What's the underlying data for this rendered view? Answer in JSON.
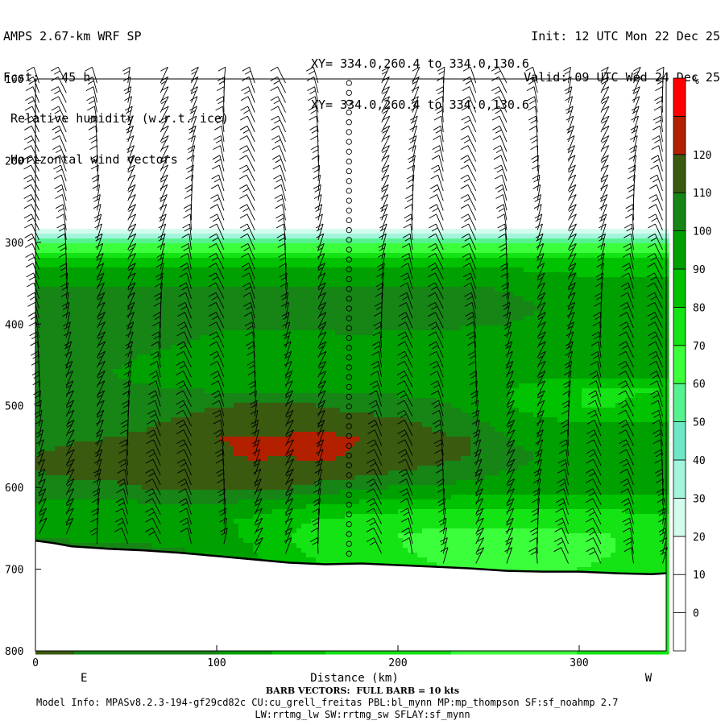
{
  "header": {
    "left_lines": [
      "AMPS 2.67-km WRF SP",
      "Fcst:   45 h",
      " Relative humidity (w.r.t. ice)",
      " Horizontal wind vectors"
    ],
    "right_lines": [
      "Init: 12 UTC Mon 22 Dec 25",
      "Valid: 09 UTC Wed 24 Dec 25"
    ],
    "xy_lines": [
      "XY= 334.0,260.4 to 334.0,130.6",
      "XY= 334.0,260.4 to 334.0,130.6"
    ]
  },
  "footer": {
    "barb_note": "BARB VECTORS:  FULL BARB = 10 kts",
    "model_info": "Model Info: MPASv8.2.3-194-gf29cd82c CU:cu_grell_freitas PBL:bl_mynn MP:mp_thompson SF:sf_noahmp 2.7",
    "model_info2": "LW:rrtmg_lw SW:rrtmg_sw SFLAY:sf_mynn"
  },
  "colors": {
    "bins": [
      "#ffffff",
      "#ffffff",
      "#ffffff",
      "#d4fcec",
      "#a2f5dc",
      "#6ee8c6",
      "#56f290",
      "#3cff3c",
      "#14e314",
      "#00c200",
      "#00a000",
      "#168516",
      "#3a5a10",
      "#b22000",
      "#ff0000"
    ]
  },
  "chart_data": {
    "type": "heatmap",
    "title": "Relative humidity (w.r.t. ice)",
    "subtitle": "Horizontal wind vectors",
    "xlabel": "Distance (km)",
    "ylabel": "",
    "xlim": [
      0,
      348
    ],
    "ylim": [
      800,
      100
    ],
    "x_ticks": [
      0,
      100,
      200,
      300
    ],
    "y_ticks": [
      100,
      200,
      300,
      400,
      500,
      600,
      700,
      800
    ],
    "x_end_labels": {
      "left": "E",
      "right": "W"
    },
    "colorbar": {
      "unit": "%",
      "labels": [
        120,
        110,
        100,
        90,
        80,
        70,
        60,
        50,
        40,
        30,
        20,
        10,
        0
      ],
      "bins": [
        [
          -10,
          0
        ],
        [
          0,
          10
        ],
        [
          10,
          20
        ],
        [
          20,
          30
        ],
        [
          30,
          40
        ],
        [
          40,
          50
        ],
        [
          50,
          60
        ],
        [
          60,
          70
        ],
        [
          70,
          80
        ],
        [
          80,
          90
        ],
        [
          90,
          100
        ],
        [
          100,
          110
        ],
        [
          110,
          120
        ],
        [
          120,
          130
        ]
      ]
    },
    "grid": false,
    "rh_field": {
      "x": [
        0,
        20,
        40,
        60,
        80,
        100,
        120,
        140,
        160,
        180,
        200,
        220,
        240,
        260,
        280,
        300,
        320,
        348
      ],
      "pressure": [
        100,
        200,
        280,
        290,
        300,
        320,
        340,
        360,
        380,
        400,
        420,
        440,
        460,
        480,
        500,
        520,
        540,
        560,
        580,
        600,
        620,
        640,
        660,
        680,
        700
      ],
      "values": [
        [
          0,
          0,
          0,
          0,
          0,
          0,
          0,
          0,
          0,
          0,
          0,
          0,
          0,
          0,
          0,
          0,
          0,
          0
        ],
        [
          0,
          0,
          0,
          0,
          0,
          0,
          0,
          0,
          0,
          0,
          0,
          0,
          0,
          0,
          0,
          0,
          0,
          0
        ],
        [
          15,
          15,
          15,
          15,
          15,
          15,
          15,
          15,
          15,
          15,
          15,
          15,
          15,
          15,
          15,
          15,
          15,
          15
        ],
        [
          32,
          32,
          32,
          32,
          32,
          32,
          32,
          32,
          32,
          32,
          32,
          32,
          32,
          32,
          32,
          32,
          32,
          32
        ],
        [
          55,
          55,
          55,
          55,
          55,
          55,
          55,
          55,
          55,
          55,
          55,
          55,
          55,
          55,
          55,
          55,
          55,
          55
        ],
        [
          82,
          82,
          82,
          82,
          82,
          82,
          82,
          82,
          82,
          82,
          82,
          82,
          82,
          82,
          82,
          82,
          82,
          82
        ],
        [
          95,
          95,
          95,
          95,
          95,
          95,
          95,
          95,
          95,
          95,
          95,
          95,
          95,
          95,
          92,
          90,
          88,
          88
        ],
        [
          102,
          102,
          102,
          102,
          103,
          103,
          103,
          103,
          103,
          103,
          103,
          103,
          102,
          100,
          98,
          97,
          96,
          96
        ],
        [
          103,
          104,
          104,
          105,
          105,
          104,
          104,
          103,
          104,
          103,
          102,
          103,
          103,
          102,
          100,
          99,
          99,
          98
        ],
        [
          104,
          104,
          104,
          105,
          104,
          103,
          102,
          101,
          102,
          102,
          101,
          102,
          101,
          100,
          99,
          98,
          98,
          98
        ],
        [
          103,
          104,
          104,
          104,
          102,
          97,
          96,
          97,
          98,
          99,
          97,
          95,
          96,
          97,
          96,
          95,
          95,
          94
        ],
        [
          104,
          104,
          103,
          99,
          96,
          96,
          96,
          96,
          95,
          94,
          95,
          96,
          97,
          94,
          95,
          96,
          96,
          95
        ],
        [
          103,
          104,
          100,
          98,
          96,
          95,
          95,
          96,
          95,
          94,
          95,
          96,
          99,
          97,
          95,
          95,
          96,
          96
        ],
        [
          103,
          103,
          102,
          101,
          100,
          99,
          98,
          98,
          98,
          97,
          97,
          95,
          92,
          90,
          85,
          80,
          78,
          80
        ],
        [
          102,
          106,
          104,
          103,
          105,
          110,
          111,
          112,
          110,
          106,
          105,
          103,
          97,
          90,
          85,
          80,
          80,
          85
        ],
        [
          101,
          104,
          105,
          108,
          112,
          115,
          116,
          117,
          116,
          114,
          112,
          108,
          102,
          96,
          92,
          90,
          90,
          90
        ],
        [
          104,
          108,
          110,
          112,
          115,
          120,
          121,
          121,
          122,
          120,
          116,
          112,
          110,
          100,
          96,
          96,
          96,
          96
        ],
        [
          110,
          114,
          116,
          116,
          116,
          118,
          122,
          121,
          122,
          118,
          115,
          114,
          110,
          103,
          99,
          99,
          99,
          98
        ],
        [
          110,
          113,
          115,
          114,
          114,
          114,
          114,
          115,
          117,
          114,
          110,
          108,
          104,
          100,
          99,
          99,
          99,
          99
        ],
        [
          102,
          106,
          107,
          110,
          111,
          112,
          112,
          110,
          106,
          102,
          99,
          98,
          97,
          95,
          94,
          94,
          94,
          94
        ],
        [
          100,
          98,
          97,
          99,
          100,
          100,
          97,
          93,
          91,
          88,
          86,
          85,
          84,
          82,
          82,
          82,
          83,
          85
        ],
        [
          96,
          93,
          92,
          92,
          93,
          92,
          88,
          82,
          79,
          76,
          73,
          74,
          74,
          74,
          74,
          75,
          76,
          78
        ],
        [
          98,
          98,
          97,
          97,
          96,
          94,
          88,
          80,
          76,
          73,
          70,
          67,
          66,
          66,
          67,
          68,
          70,
          72
        ],
        [
          108,
          106,
          104,
          103,
          101,
          98,
          91,
          82,
          77,
          74,
          71,
          68,
          66,
          65,
          66,
          68,
          70,
          72
        ],
        [
          110,
          110,
          108,
          106,
          104,
          100,
          94,
          86,
          80,
          77,
          74,
          71,
          69,
          68,
          69,
          70,
          72,
          74
        ]
      ]
    },
    "terrain": {
      "x": [
        0,
        10,
        20,
        40,
        60,
        80,
        100,
        120,
        140,
        160,
        180,
        200,
        220,
        240,
        260,
        280,
        300,
        320,
        340,
        348
      ],
      "pressure": [
        665,
        668,
        672,
        675,
        677,
        680,
        684,
        688,
        692,
        694,
        693,
        695,
        697,
        699,
        702,
        703,
        703,
        705,
        706,
        705
      ]
    },
    "wind_barb_columns": {
      "x": [
        2,
        17,
        34,
        51,
        69,
        86,
        104,
        121,
        138,
        156,
        173,
        191,
        208,
        225,
        243,
        260,
        277,
        294,
        312,
        330,
        346
      ]
    }
  }
}
